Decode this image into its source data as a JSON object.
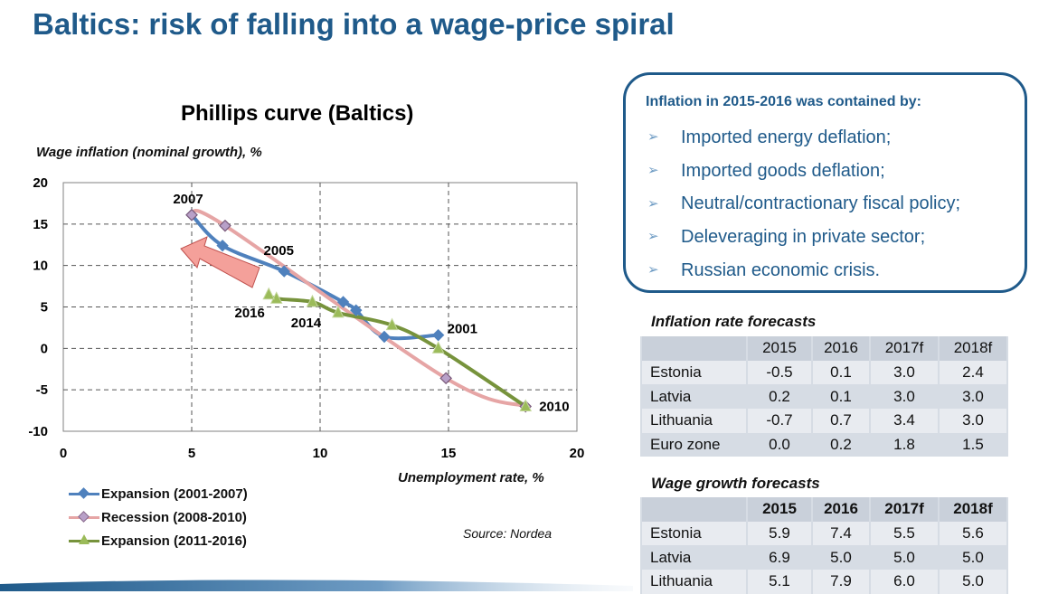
{
  "slide": {
    "title": "Baltics: risk of falling into a wage-price spiral"
  },
  "chart_data": {
    "type": "line",
    "title": "Phillips curve (Baltics)",
    "ylabel": "Wage inflation (nominal growth), %",
    "xlabel": "Unemployment rate, %",
    "xlim": [
      0,
      20
    ],
    "ylim": [
      -10,
      20
    ],
    "xticks": [
      "0",
      "5",
      "10",
      "15",
      "20"
    ],
    "yticks": [
      "20",
      "15",
      "10",
      "5",
      "0",
      "-5",
      "-10"
    ],
    "grid": "dashed",
    "series": [
      {
        "name": "Expansion (2001-2007)",
        "color": "#4f81bd",
        "marker": "diamond",
        "points": [
          [
            14.6,
            1.6
          ],
          [
            12.5,
            1.4
          ],
          [
            11.4,
            4.6
          ],
          [
            10.9,
            5.6
          ],
          [
            8.6,
            9.3
          ],
          [
            6.2,
            12.4
          ],
          [
            5.0,
            16.1
          ]
        ]
      },
      {
        "name": "Recession (2008-2010)",
        "color": "#e6a5a5",
        "marker": "diamond-open",
        "points": [
          [
            5.0,
            16.1
          ],
          [
            6.3,
            14.8
          ],
          [
            14.9,
            -3.6
          ],
          [
            18.0,
            -7.0
          ]
        ]
      },
      {
        "name": "Expansion (2011-2016)",
        "color": "#77933c",
        "marker": "triangle",
        "points": [
          [
            18.0,
            -7.0
          ],
          [
            14.6,
            0.0
          ],
          [
            12.8,
            2.8
          ],
          [
            10.7,
            4.3
          ],
          [
            9.7,
            5.6
          ],
          [
            8.3,
            6.0
          ],
          [
            8.0,
            6.5
          ]
        ]
      }
    ],
    "annotations": [
      "2007",
      "2005",
      "2016",
      "2014",
      "2001",
      "2010"
    ]
  },
  "source": "Source: Nordea",
  "infobox": {
    "title": "Inflation in 2015-2016 was contained by:",
    "items": [
      "Imported energy deflation;",
      "Imported goods deflation;",
      "Neutral/contractionary fiscal policy;",
      "Deleveraging in private sector;",
      "Russian economic crisis."
    ]
  },
  "inflation_table": {
    "title": "Inflation rate forecasts",
    "headers": [
      "",
      "2015",
      "2016",
      "2017f",
      "2018f"
    ],
    "rows": [
      [
        "Estonia",
        "-0.5",
        "0.1",
        "3.0",
        "2.4"
      ],
      [
        "Latvia",
        "0.2",
        "0.1",
        "3.0",
        "3.0"
      ],
      [
        "Lithuania",
        "-0.7",
        "0.7",
        "3.4",
        "3.0"
      ],
      [
        "Euro zone",
        "0.0",
        "0.2",
        "1.8",
        "1.5"
      ]
    ]
  },
  "wage_table": {
    "title": "Wage growth forecasts",
    "headers": [
      "",
      "2015",
      "2016",
      "2017f",
      "2018f"
    ],
    "rows": [
      [
        "Estonia",
        "5.9",
        "7.4",
        "5.5",
        "5.6"
      ],
      [
        "Latvia",
        "6.9",
        "5.0",
        "5.0",
        "5.0"
      ],
      [
        "Lithuania",
        "5.1",
        "7.9",
        "6.0",
        "5.0"
      ]
    ]
  },
  "colors": {
    "brand": "#1f5a8a",
    "table_bg": "#d6dce4",
    "arrow": "#f4a09a"
  }
}
